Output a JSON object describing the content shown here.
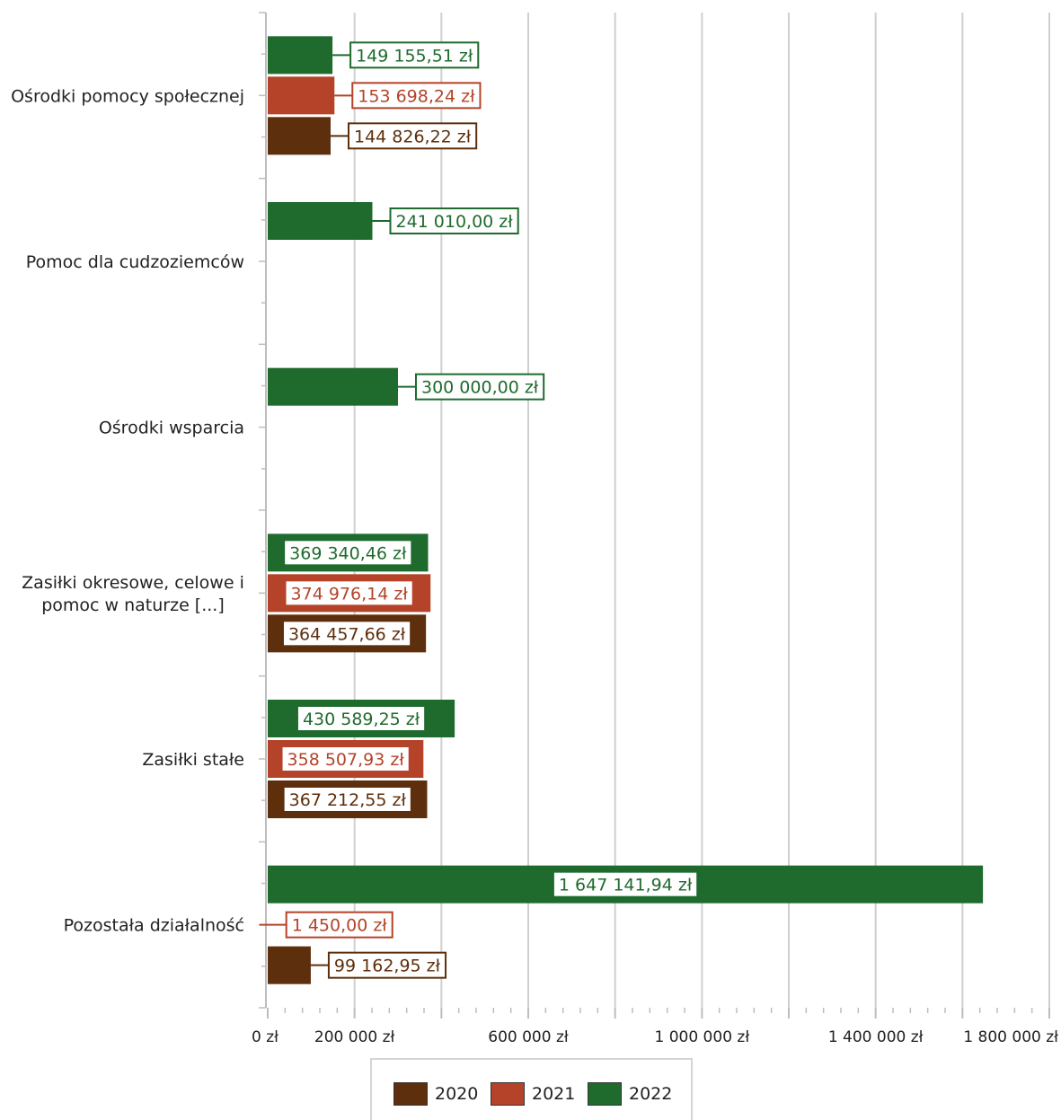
{
  "chart_data": {
    "type": "bar",
    "orientation": "horizontal",
    "categories": [
      "Ośrodki pomocy społecznej",
      "Pomoc dla cudzoziemców",
      "Ośrodki wsparcia",
      "Zasiłki okresowe, celowe i pomoc w naturze [...]",
      "Zasiłki stałe",
      "Pozostała działalność"
    ],
    "category_lines": [
      [
        "Ośrodki pomocy społecznej"
      ],
      [
        "Pomoc dla cudzoziemców"
      ],
      [
        "Ośrodki wsparcia"
      ],
      [
        "Zasiłki okresowe, celowe i",
        "pomoc w naturze [...]"
      ],
      [
        "Zasiłki stałe"
      ],
      [
        "Pozostała działalność"
      ]
    ],
    "series": [
      {
        "name": "2022",
        "color": "#1f6b2e",
        "values": [
          149155.51,
          241010.0,
          300000.0,
          369340.46,
          430589.25,
          1647141.94
        ],
        "labels": [
          "149 155,51 zł",
          "241 010,00 zł",
          "300 000,00 zł",
          "369 340,46 zł",
          "430 589,25 zł",
          "1 647 141,94 zł"
        ]
      },
      {
        "name": "2021",
        "color": "#b5432a",
        "values": [
          153698.24,
          null,
          null,
          374976.14,
          358507.93,
          1450.0
        ],
        "labels": [
          "153 698,24 zł",
          "",
          "",
          "374 976,14 zł",
          "358 507,93 zł",
          "1 450,00 zł"
        ]
      },
      {
        "name": "2020",
        "color": "#5e2f0d",
        "values": [
          144826.22,
          null,
          null,
          364457.66,
          367212.55,
          99162.95
        ],
        "labels": [
          "144 826,22 zł",
          "",
          "",
          "364 457,66 zł",
          "367 212,55 zł",
          "99 162,95 zł"
        ]
      }
    ],
    "xlim": [
      0,
      1800000
    ],
    "x_ticks": [
      0,
      200000,
      600000,
      1000000,
      1400000,
      1800000
    ],
    "x_tick_labels": [
      "0 zł",
      "200 000 zł",
      "600 000 zł",
      "1 000 000 zł",
      "1 400 000 zł",
      "1 800 000 zł"
    ],
    "x_gridlines": [
      0,
      200000,
      400000,
      600000,
      800000,
      1000000,
      1200000,
      1400000,
      1600000,
      1800000
    ],
    "grid": true,
    "legend_position": "bottom",
    "title": "",
    "xlabel": "",
    "ylabel": ""
  },
  "legend": {
    "items": [
      {
        "label": "2020",
        "color": "#5e2f0d"
      },
      {
        "label": "2021",
        "color": "#b5432a"
      },
      {
        "label": "2022",
        "color": "#1f6b2e"
      }
    ]
  }
}
